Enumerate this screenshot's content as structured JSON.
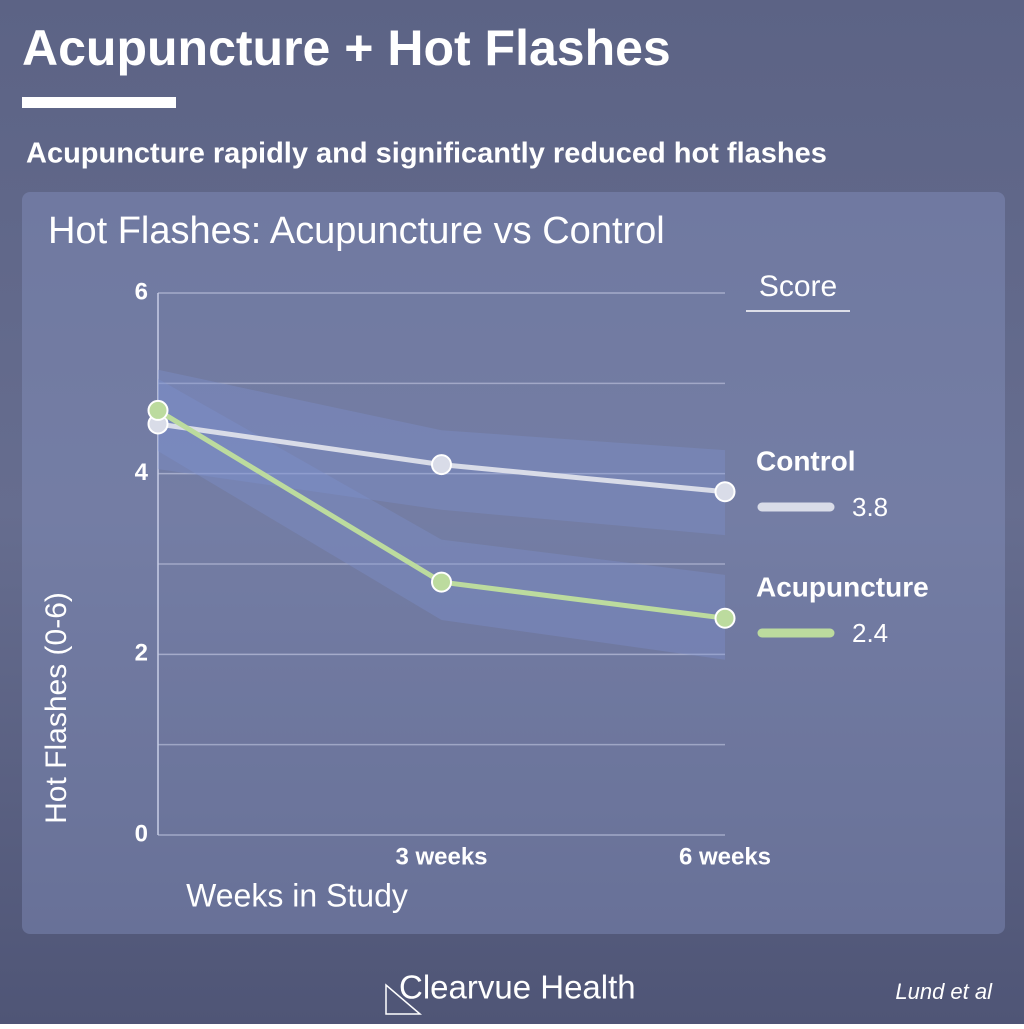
{
  "header": {
    "title": "Acupuncture + Hot Flashes",
    "subtitle": "Acupuncture rapidly and significantly reduced hot flashes"
  },
  "chart_data": {
    "type": "line",
    "title": "Hot Flashes: Acupuncture vs Control",
    "categories": [
      null,
      "3 weeks",
      "6 weeks"
    ],
    "x_label": "Weeks in Study",
    "y_label": "Hot Flashes (0-6)",
    "ylim": [
      0,
      6
    ],
    "yticks": [
      0,
      2,
      4,
      6
    ],
    "minor_yticks": [
      1,
      3,
      5
    ],
    "grid": true,
    "legend_title": "Score",
    "series": [
      {
        "name": "Control",
        "color": "#d9dce8",
        "values": [
          4.55,
          4.1,
          3.8
        ],
        "lower": [
          4.05,
          3.6,
          3.32
        ],
        "upper": [
          5.15,
          4.48,
          4.26
        ]
      },
      {
        "name": "Acupuncture",
        "color": "#bcdb9e",
        "values": [
          4.7,
          2.8,
          2.4
        ],
        "lower": [
          4.25,
          2.38,
          1.94
        ],
        "upper": [
          5.05,
          3.27,
          2.88
        ]
      }
    ]
  },
  "footer": {
    "brand": "Clearvue Health",
    "source": "Lund et al"
  }
}
